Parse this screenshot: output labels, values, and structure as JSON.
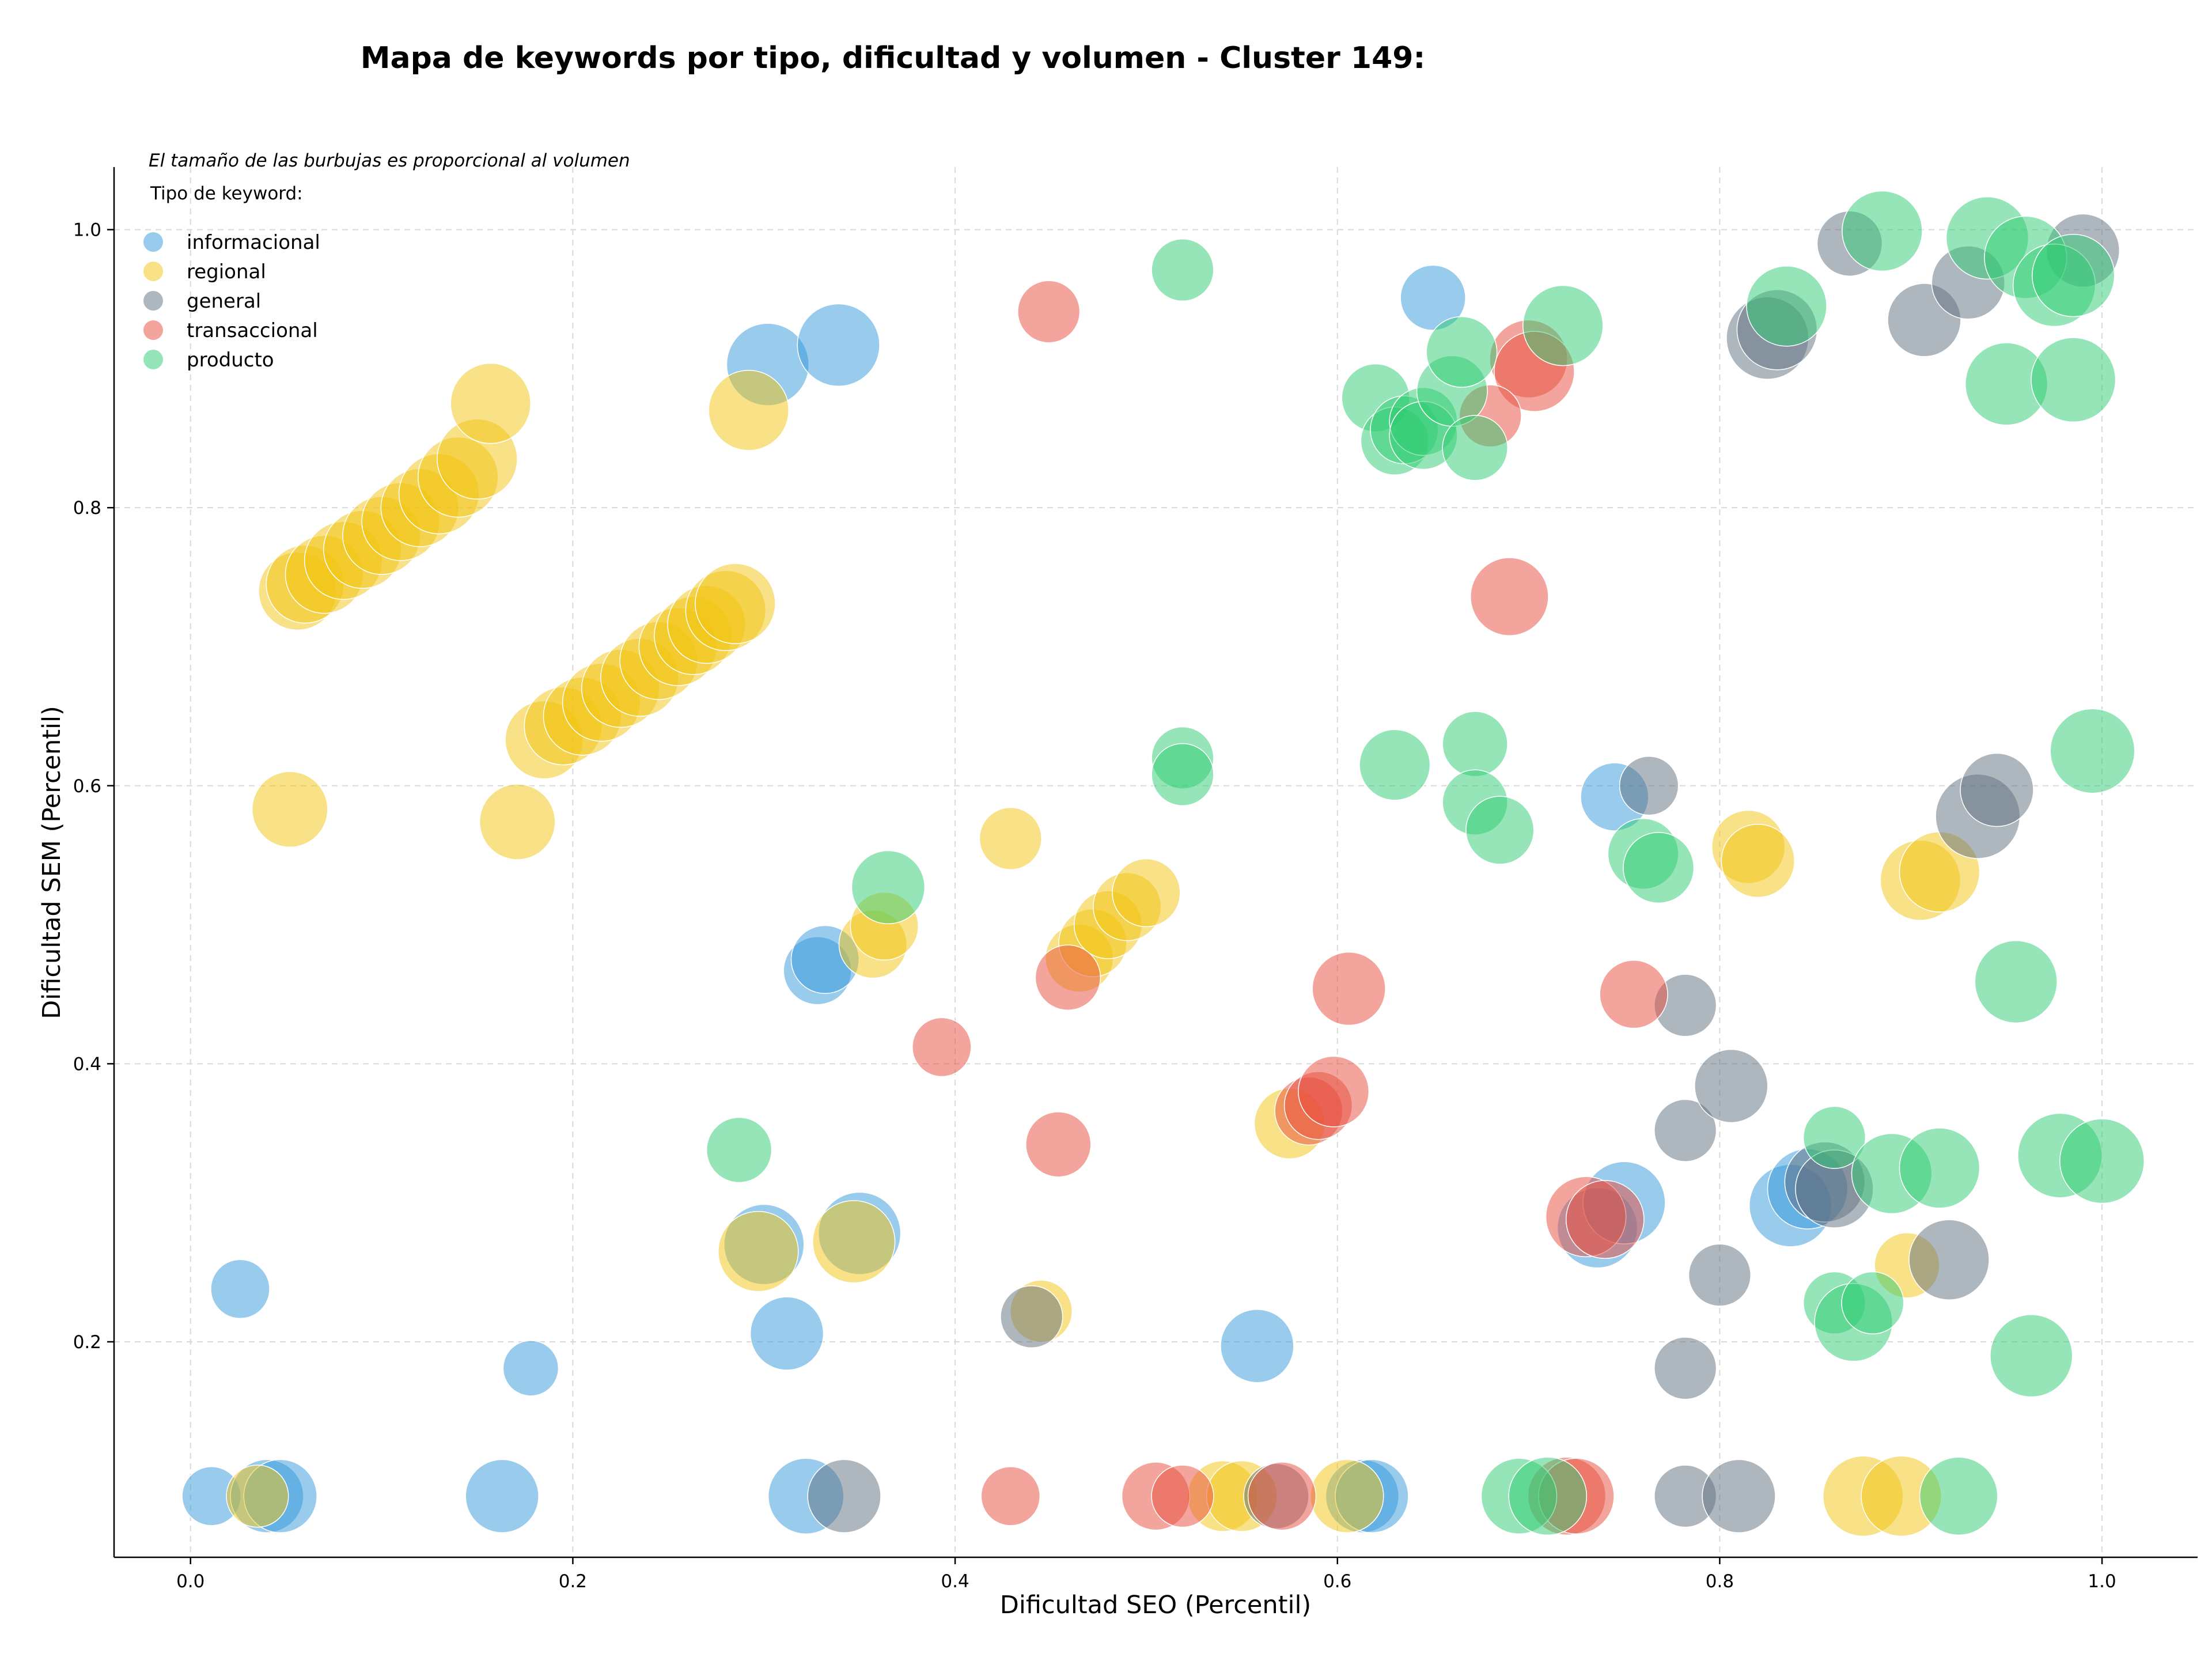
{
  "chart_data": {
    "type": "scatter",
    "title": "Mapa de keywords por tipo, dificultad y volumen - Cluster 149:",
    "xlabel": "Dificultad SEO (Percentil)",
    "ylabel": "Dificultad SEM (Percentil)",
    "xlim": [
      -0.04,
      1.05
    ],
    "ylim": [
      0.045,
      1.045
    ],
    "xticks": [
      0.0,
      0.2,
      0.4,
      0.6,
      0.8,
      1.0
    ],
    "yticks": [
      0.2,
      0.4,
      0.6,
      0.8,
      1.0
    ],
    "xtick_labels": [
      "0.0",
      "0.2",
      "0.4",
      "0.6",
      "0.8",
      "1.0"
    ],
    "ytick_labels": [
      "0.2",
      "0.4",
      "0.6",
      "0.8",
      "1.0"
    ],
    "grid": true,
    "note": "El tamaño de las burbujas es proporcional al volumen",
    "legend_title": "Tipo de keyword:",
    "legend_position": "top-left",
    "series": [
      {
        "name": "informacional",
        "color": "#3498db",
        "points": [
          [
            0.011,
            0.089,
            0.3
          ],
          [
            0.04,
            0.089,
            0.55
          ],
          [
            0.047,
            0.089,
            0.55
          ],
          [
            0.026,
            0.238,
            0.3
          ],
          [
            0.163,
            0.089,
            0.55
          ],
          [
            0.178,
            0.181,
            0.25
          ],
          [
            0.302,
            0.903,
            0.75
          ],
          [
            0.339,
            0.917,
            0.75
          ],
          [
            0.3,
            0.27,
            0.7
          ],
          [
            0.322,
            0.089,
            0.6
          ],
          [
            0.312,
            0.206,
            0.55
          ],
          [
            0.328,
            0.467,
            0.45
          ],
          [
            0.332,
            0.475,
            0.45
          ],
          [
            0.35,
            0.278,
            0.75
          ],
          [
            0.558,
            0.197,
            0.55
          ],
          [
            0.613,
            0.089,
            0.55
          ],
          [
            0.618,
            0.089,
            0.55
          ],
          [
            0.65,
            0.951,
            0.4
          ],
          [
            0.736,
            0.282,
            0.7
          ],
          [
            0.75,
            0.3,
            0.75
          ],
          [
            0.745,
            0.592,
            0.45
          ],
          [
            0.837,
            0.298,
            0.75
          ],
          [
            0.846,
            0.31,
            0.7
          ]
        ]
      },
      {
        "name": "regional",
        "color": "#f1c40f",
        "points": [
          [
            0.056,
            0.74,
            0.65
          ],
          [
            0.06,
            0.745,
            0.65
          ],
          [
            0.07,
            0.752,
            0.65
          ],
          [
            0.08,
            0.762,
            0.65
          ],
          [
            0.09,
            0.77,
            0.65
          ],
          [
            0.1,
            0.78,
            0.65
          ],
          [
            0.11,
            0.79,
            0.65
          ],
          [
            0.12,
            0.8,
            0.65
          ],
          [
            0.13,
            0.81,
            0.7
          ],
          [
            0.14,
            0.822,
            0.7
          ],
          [
            0.15,
            0.835,
            0.7
          ],
          [
            0.157,
            0.875,
            0.7
          ],
          [
            0.052,
            0.583,
            0.6
          ],
          [
            0.171,
            0.574,
            0.6
          ],
          [
            0.185,
            0.633,
            0.65
          ],
          [
            0.195,
            0.643,
            0.65
          ],
          [
            0.205,
            0.65,
            0.65
          ],
          [
            0.215,
            0.66,
            0.65
          ],
          [
            0.225,
            0.67,
            0.65
          ],
          [
            0.235,
            0.678,
            0.65
          ],
          [
            0.245,
            0.69,
            0.65
          ],
          [
            0.255,
            0.7,
            0.65
          ],
          [
            0.263,
            0.708,
            0.65
          ],
          [
            0.27,
            0.716,
            0.65
          ],
          [
            0.28,
            0.726,
            0.7
          ],
          [
            0.285,
            0.731,
            0.7
          ],
          [
            0.292,
            0.87,
            0.7
          ],
          [
            0.297,
            0.265,
            0.7
          ],
          [
            0.347,
            0.272,
            0.75
          ],
          [
            0.357,
            0.486,
            0.45
          ],
          [
            0.363,
            0.499,
            0.45
          ],
          [
            0.429,
            0.562,
            0.35
          ],
          [
            0.445,
            0.222,
            0.35
          ],
          [
            0.465,
            0.476,
            0.45
          ],
          [
            0.472,
            0.487,
            0.45
          ],
          [
            0.48,
            0.5,
            0.45
          ],
          [
            0.49,
            0.513,
            0.45
          ],
          [
            0.5,
            0.523,
            0.45
          ],
          [
            0.035,
            0.089,
            0.35
          ],
          [
            0.54,
            0.089,
            0.5
          ],
          [
            0.55,
            0.089,
            0.5
          ],
          [
            0.575,
            0.357,
            0.5
          ],
          [
            0.605,
            0.089,
            0.55
          ],
          [
            0.815,
            0.556,
            0.55
          ],
          [
            0.82,
            0.546,
            0.55
          ],
          [
            0.875,
            0.089,
            0.7
          ],
          [
            0.895,
            0.089,
            0.7
          ],
          [
            0.898,
            0.255,
            0.4
          ],
          [
            0.905,
            0.532,
            0.7
          ],
          [
            0.915,
            0.538,
            0.7
          ]
        ]
      },
      {
        "name": "general",
        "color": "#5d6d7e",
        "points": [
          [
            0.342,
            0.089,
            0.55
          ],
          [
            0.44,
            0.218,
            0.35
          ],
          [
            0.568,
            0.089,
            0.4
          ],
          [
            0.763,
            0.6,
            0.3
          ],
          [
            0.782,
            0.442,
            0.35
          ],
          [
            0.782,
            0.352,
            0.35
          ],
          [
            0.782,
            0.181,
            0.35
          ],
          [
            0.782,
            0.089,
            0.35
          ],
          [
            0.8,
            0.248,
            0.35
          ],
          [
            0.806,
            0.384,
            0.55
          ],
          [
            0.81,
            0.089,
            0.55
          ],
          [
            0.825,
            0.922,
            0.75
          ],
          [
            0.83,
            0.928,
            0.7
          ],
          [
            0.855,
            0.315,
            0.7
          ],
          [
            0.86,
            0.31,
            0.65
          ],
          [
            0.868,
            0.99,
            0.4
          ],
          [
            0.907,
            0.935,
            0.55
          ],
          [
            0.93,
            0.962,
            0.55
          ],
          [
            0.935,
            0.578,
            0.8
          ],
          [
            0.945,
            0.597,
            0.55
          ],
          [
            0.92,
            0.259,
            0.7
          ],
          [
            0.99,
            0.985,
            0.55
          ]
        ]
      },
      {
        "name": "transaccional",
        "color": "#e74c3c",
        "points": [
          [
            0.393,
            0.412,
            0.3
          ],
          [
            0.429,
            0.089,
            0.3
          ],
          [
            0.449,
            0.941,
            0.35
          ],
          [
            0.454,
            0.342,
            0.4
          ],
          [
            0.459,
            0.462,
            0.4
          ],
          [
            0.505,
            0.089,
            0.45
          ],
          [
            0.519,
            0.089,
            0.35
          ],
          [
            0.571,
            0.089,
            0.45
          ],
          [
            0.585,
            0.366,
            0.45
          ],
          [
            0.59,
            0.37,
            0.45
          ],
          [
            0.598,
            0.38,
            0.5
          ],
          [
            0.606,
            0.454,
            0.55
          ],
          [
            0.69,
            0.736,
            0.65
          ],
          [
            0.7,
            0.907,
            0.65
          ],
          [
            0.703,
            0.898,
            0.7
          ],
          [
            0.68,
            0.866,
            0.35
          ],
          [
            0.72,
            0.089,
            0.65
          ],
          [
            0.725,
            0.089,
            0.6
          ],
          [
            0.73,
            0.29,
            0.7
          ],
          [
            0.74,
            0.288,
            0.65
          ],
          [
            0.755,
            0.45,
            0.45
          ]
        ]
      },
      {
        "name": "producto",
        "color": "#2ecc71",
        "points": [
          [
            0.287,
            0.338,
            0.4
          ],
          [
            0.365,
            0.527,
            0.55
          ],
          [
            0.519,
            0.971,
            0.35
          ],
          [
            0.519,
            0.62,
            0.35
          ],
          [
            0.519,
            0.608,
            0.35
          ],
          [
            0.62,
            0.879,
            0.45
          ],
          [
            0.63,
            0.848,
            0.45
          ],
          [
            0.63,
            0.615,
            0.5
          ],
          [
            0.635,
            0.856,
            0.45
          ],
          [
            0.645,
            0.862,
            0.45
          ],
          [
            0.645,
            0.852,
            0.45
          ],
          [
            0.66,
            0.884,
            0.5
          ],
          [
            0.665,
            0.912,
            0.5
          ],
          [
            0.672,
            0.843,
            0.4
          ],
          [
            0.672,
            0.63,
            0.4
          ],
          [
            0.672,
            0.588,
            0.4
          ],
          [
            0.685,
            0.568,
            0.45
          ],
          [
            0.695,
            0.089,
            0.6
          ],
          [
            0.71,
            0.089,
            0.65
          ],
          [
            0.718,
            0.931,
            0.7
          ],
          [
            0.76,
            0.551,
            0.5
          ],
          [
            0.768,
            0.541,
            0.5
          ],
          [
            0.835,
            0.945,
            0.7
          ],
          [
            0.86,
            0.347,
            0.35
          ],
          [
            0.86,
            0.228,
            0.35
          ],
          [
            0.87,
            0.214,
            0.65
          ],
          [
            0.88,
            0.228,
            0.35
          ],
          [
            0.885,
            0.999,
            0.7
          ],
          [
            0.89,
            0.321,
            0.7
          ],
          [
            0.915,
            0.325,
            0.7
          ],
          [
            0.925,
            0.089,
            0.65
          ],
          [
            0.94,
            0.994,
            0.75
          ],
          [
            0.95,
            0.889,
            0.75
          ],
          [
            0.955,
            0.459,
            0.75
          ],
          [
            0.96,
            0.98,
            0.75
          ],
          [
            0.963,
            0.19,
            0.75
          ],
          [
            0.975,
            0.96,
            0.75
          ],
          [
            0.978,
            0.334,
            0.8
          ],
          [
            0.985,
            0.967,
            0.75
          ],
          [
            0.985,
            0.892,
            0.8
          ],
          [
            0.995,
            0.625,
            0.8
          ],
          [
            1.0,
            0.33,
            0.8
          ]
        ]
      }
    ]
  }
}
